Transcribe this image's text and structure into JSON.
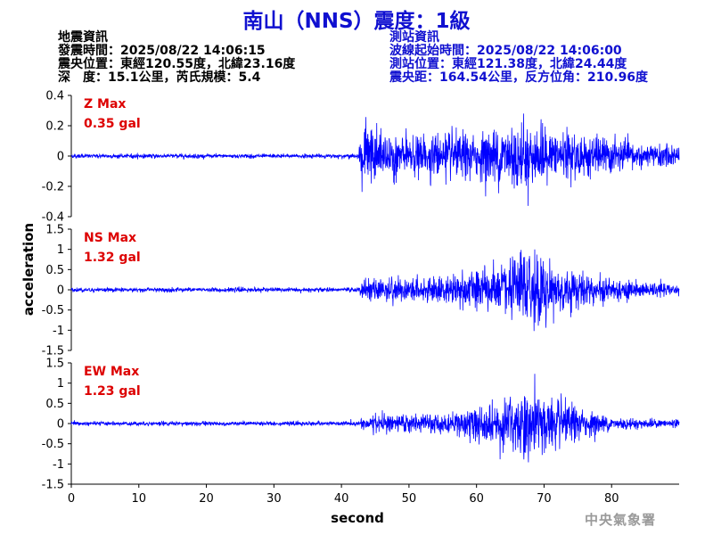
{
  "title": "南山（NNS）震度：1級",
  "quake_info": {
    "heading": "地震資訊",
    "time": "發震時間：2025/08/22 14:06:15",
    "epicenter": "震央位置：東經120.55度，北緯23.16度",
    "depth_mag": "深　度：15.1公里，芮氏規模：5.4"
  },
  "station_info": {
    "heading": "測站資訊",
    "start_time": "波線起始時間：2025/08/22 14:06:00",
    "location": "測站位置：東經121.38度，北緯24.44度",
    "distance": "震央距：164.54公里，反方位角：210.96度"
  },
  "footer": "中央氣象署",
  "colors": {
    "trace": "#0000ff",
    "max_label": "#dd0000",
    "title": "#1010d0"
  },
  "chart_data": {
    "type": "line",
    "xlabel": "second",
    "ylabel": "acceleration",
    "xlim": [
      0,
      90
    ],
    "xticks": [
      0,
      10,
      20,
      30,
      40,
      50,
      60,
      70,
      80
    ],
    "panels": [
      {
        "component": "Z",
        "max_label": "Z Max",
        "max_value": "0.35 gal",
        "ylim": [
          -0.4,
          0.4
        ],
        "yticks": [
          0.4,
          0.2,
          0,
          -0.2,
          -0.4
        ],
        "ytick_labels": [
          "0.4",
          "0.2",
          "0",
          "-0.2",
          "-0.4"
        ],
        "peak": 0.35,
        "noise": 0.005,
        "envelope": [
          [
            0,
            0.008
          ],
          [
            42.5,
            0.008
          ],
          [
            43,
            0.18
          ],
          [
            45,
            0.15
          ],
          [
            50,
            0.11
          ],
          [
            55,
            0.13
          ],
          [
            60,
            0.12
          ],
          [
            65,
            0.2
          ],
          [
            68,
            0.18
          ],
          [
            72,
            0.14
          ],
          [
            80,
            0.1
          ],
          [
            85,
            0.07
          ],
          [
            90,
            0.06
          ]
        ]
      },
      {
        "component": "NS",
        "max_label": "NS Max",
        "max_value": "1.32 gal",
        "ylim": [
          -1.5,
          1.5
        ],
        "yticks": [
          1.5,
          1,
          0.5,
          0,
          -0.5,
          -1,
          -1.5
        ],
        "ytick_labels": [
          "1.5",
          "1",
          "0.5",
          "0",
          "-0.5",
          "-1",
          "-1.5"
        ],
        "peak": 1.32,
        "noise": 0.02,
        "envelope": [
          [
            0,
            0.03
          ],
          [
            42.5,
            0.03
          ],
          [
            43,
            0.18
          ],
          [
            46,
            0.3
          ],
          [
            50,
            0.25
          ],
          [
            55,
            0.3
          ],
          [
            60,
            0.45
          ],
          [
            64,
            0.6
          ],
          [
            67,
            0.9
          ],
          [
            69,
            0.85
          ],
          [
            72,
            0.55
          ],
          [
            78,
            0.3
          ],
          [
            85,
            0.15
          ],
          [
            90,
            0.12
          ]
        ]
      },
      {
        "component": "EW",
        "max_label": "EW Max",
        "max_value": "1.23 gal",
        "ylim": [
          -1.5,
          1.5
        ],
        "yticks": [
          1.5,
          1,
          0.5,
          0,
          -0.5,
          -1,
          -1.5
        ],
        "ytick_labels": [
          "1.5",
          "1",
          "0.5",
          "0",
          "-0.5",
          "-1",
          "-1.5"
        ],
        "peak": 1.23,
        "noise": 0.02,
        "envelope": [
          [
            0,
            0.03
          ],
          [
            42.5,
            0.03
          ],
          [
            43,
            0.15
          ],
          [
            47,
            0.25
          ],
          [
            52,
            0.18
          ],
          [
            58,
            0.28
          ],
          [
            63,
            0.55
          ],
          [
            66,
            0.75
          ],
          [
            68,
            0.85
          ],
          [
            71,
            0.6
          ],
          [
            75,
            0.35
          ],
          [
            80,
            0.15
          ],
          [
            85,
            0.1
          ],
          [
            90,
            0.08
          ]
        ]
      }
    ]
  }
}
